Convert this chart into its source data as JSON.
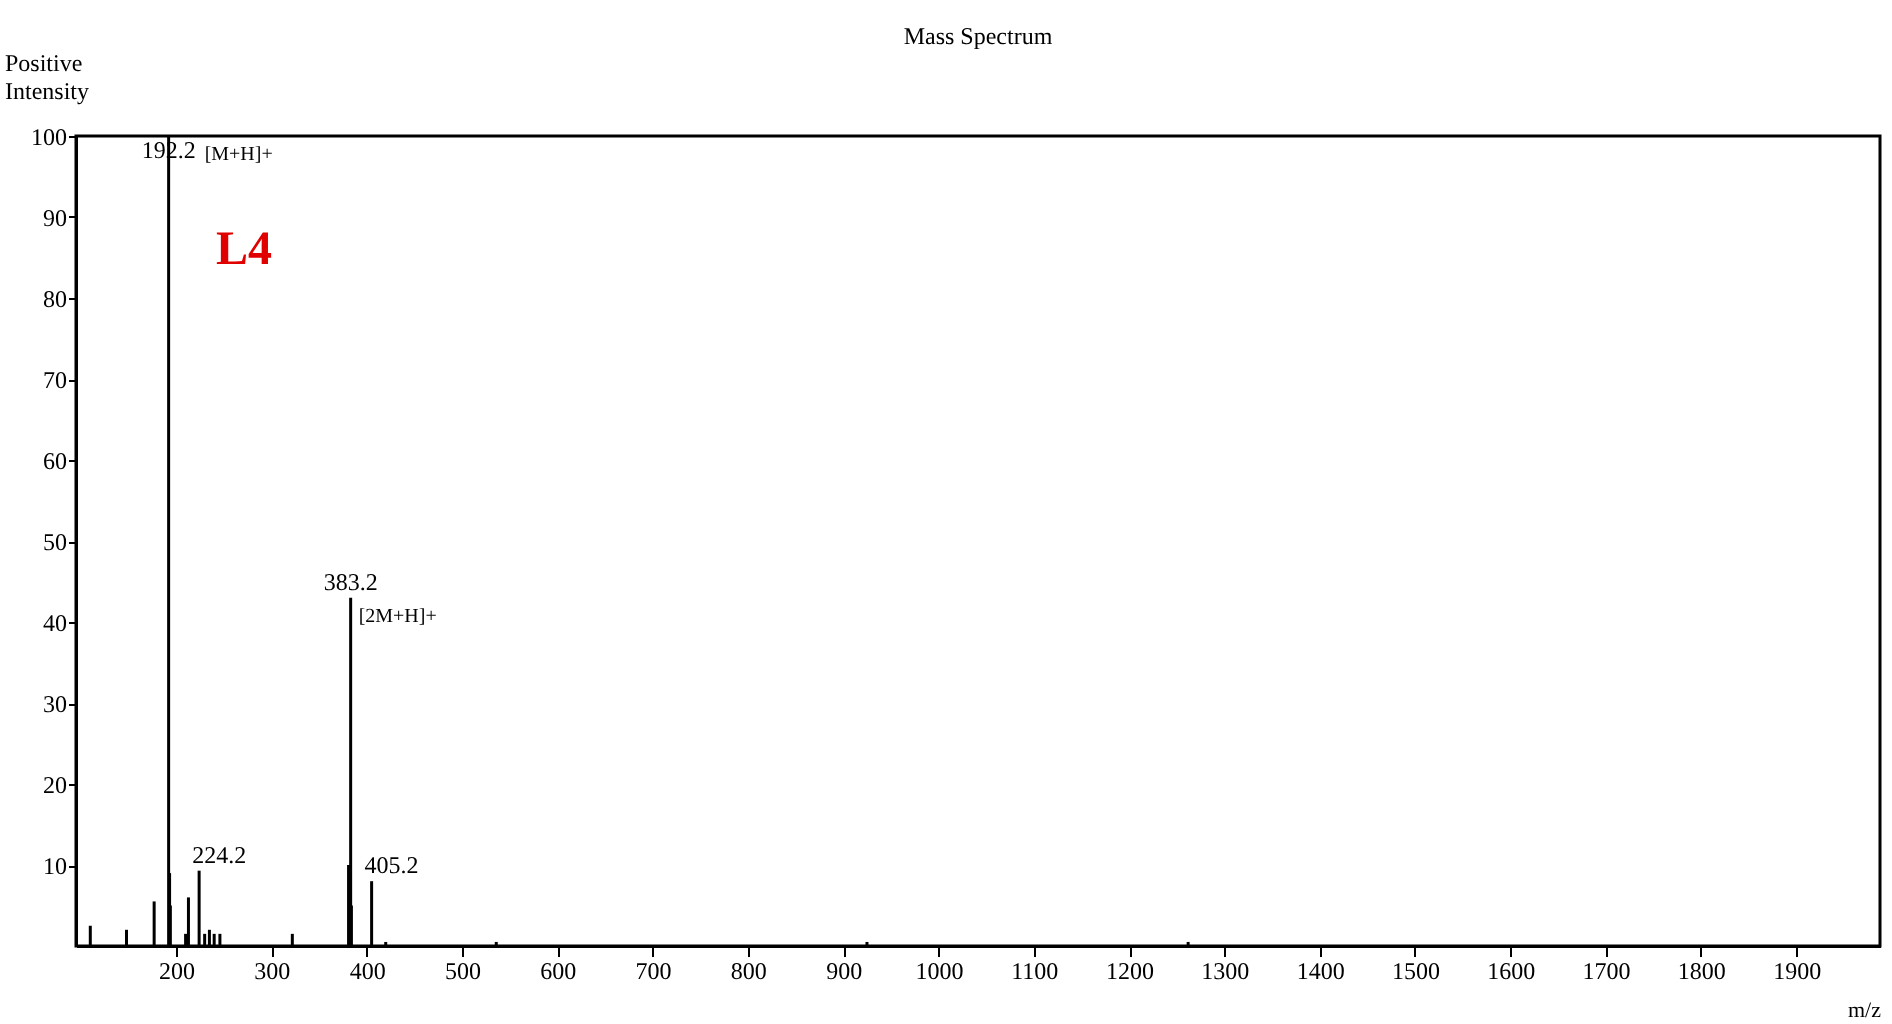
{
  "chart_data": {
    "type": "bar",
    "title": "Mass Spectrum",
    "xlabel": "m/z",
    "ylabel": "Positive\nIntensity",
    "x": [
      110,
      148,
      177,
      192.2,
      193.2,
      194,
      210,
      213,
      224.2,
      230,
      235,
      240,
      246,
      322,
      381,
      383.2,
      384,
      405.2,
      420,
      536,
      925,
      1262
    ],
    "values": [
      2.5,
      2,
      5.5,
      100,
      9,
      5,
      1.5,
      6,
      9.3,
      1.5,
      2,
      1.5,
      1.5,
      1.5,
      10,
      43,
      5,
      8,
      0.5,
      0.5,
      0.5,
      0.5
    ],
    "color": "#000000",
    "xlim": [
      95,
      1988
    ],
    "xticks": [
      200,
      300,
      400,
      500,
      600,
      700,
      800,
      900,
      {
        "value": 1000,
        "label": "1000"
      },
      {
        "value": 1100,
        "label": "1100"
      },
      {
        "value": 1200,
        "label": "1200"
      },
      {
        "value": 1300,
        "label": "1300"
      },
      {
        "value": 1400,
        "label": "1400"
      },
      {
        "value": 1500,
        "label": "1500"
      },
      {
        "value": 1600,
        "label": "1600"
      },
      {
        "value": 1700,
        "label": "1700"
      },
      {
        "value": 1800,
        "label": "1800"
      },
      {
        "value": 1900,
        "label": "1900"
      }
    ],
    "ylim": [
      0,
      100
    ],
    "yticks": [
      10,
      20,
      30,
      40,
      50,
      60,
      70,
      80,
      90,
      100
    ],
    "annotations": [
      "L4",
      {
        "text": "192.2",
        "x": 192.2,
        "y": 100
      },
      "[M+H]+",
      {
        "text": "224.2",
        "x": 224.2,
        "y": 9.3
      },
      {
        "text": "383.2",
        "x": 383.2,
        "y": 43
      },
      "[2M+H]+",
      {
        "text": "405.2",
        "x": 405.2,
        "y": 8
      }
    ],
    "grid": false
  }
}
